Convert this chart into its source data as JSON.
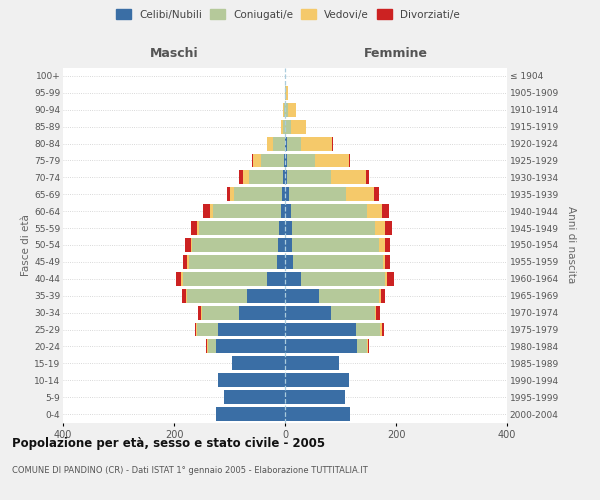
{
  "age_groups": [
    "0-4",
    "5-9",
    "10-14",
    "15-19",
    "20-24",
    "25-29",
    "30-34",
    "35-39",
    "40-44",
    "45-49",
    "50-54",
    "55-59",
    "60-64",
    "65-69",
    "70-74",
    "75-79",
    "80-84",
    "85-89",
    "90-94",
    "95-99",
    "100+"
  ],
  "birth_years": [
    "2000-2004",
    "1995-1999",
    "1990-1994",
    "1985-1989",
    "1980-1984",
    "1975-1979",
    "1970-1974",
    "1965-1969",
    "1960-1964",
    "1955-1959",
    "1950-1954",
    "1945-1949",
    "1940-1944",
    "1935-1939",
    "1930-1934",
    "1925-1929",
    "1920-1924",
    "1915-1919",
    "1910-1914",
    "1905-1909",
    "≤ 1904"
  ],
  "male": {
    "celibi": [
      125,
      110,
      120,
      95,
      125,
      120,
      82,
      68,
      32,
      15,
      12,
      10,
      8,
      5,
      3,
      2,
      0,
      0,
      0,
      0,
      0
    ],
    "coniugati": [
      0,
      0,
      0,
      0,
      14,
      38,
      68,
      108,
      152,
      158,
      155,
      145,
      122,
      87,
      62,
      42,
      22,
      4,
      2,
      0,
      0
    ],
    "vedovi": [
      0,
      0,
      0,
      0,
      2,
      2,
      2,
      2,
      3,
      3,
      3,
      3,
      5,
      8,
      10,
      14,
      10,
      4,
      2,
      0,
      0
    ],
    "divorziati": [
      0,
      0,
      0,
      0,
      2,
      2,
      5,
      8,
      10,
      8,
      10,
      11,
      12,
      5,
      8,
      2,
      0,
      0,
      0,
      0,
      0
    ]
  },
  "female": {
    "nubili": [
      118,
      108,
      115,
      98,
      130,
      128,
      82,
      62,
      28,
      14,
      12,
      12,
      10,
      8,
      4,
      4,
      4,
      0,
      0,
      0,
      0
    ],
    "coniugate": [
      0,
      0,
      0,
      0,
      18,
      44,
      80,
      108,
      152,
      162,
      158,
      150,
      137,
      102,
      78,
      50,
      25,
      10,
      5,
      2,
      0
    ],
    "vedove": [
      0,
      0,
      0,
      0,
      2,
      2,
      2,
      3,
      4,
      5,
      10,
      18,
      28,
      50,
      64,
      62,
      55,
      28,
      15,
      4,
      0
    ],
    "divorziate": [
      0,
      0,
      0,
      0,
      2,
      4,
      8,
      8,
      12,
      8,
      10,
      12,
      12,
      10,
      5,
      2,
      2,
      0,
      0,
      0,
      0
    ]
  },
  "colors": {
    "celibi_nubili": "#3a6ea5",
    "coniugati": "#b5c99a",
    "vedovi": "#f5c96a",
    "divorziati": "#cc2222"
  },
  "xlim": 400,
  "title": "Popolazione per età, sesso e stato civile - 2005",
  "subtitle": "COMUNE DI PANDINO (CR) - Dati ISTAT 1° gennaio 2005 - Elaborazione TUTTITALIA.IT",
  "ylabel_left": "Fasce di età",
  "ylabel_right": "Anni di nascita",
  "xlabel_maschi": "Maschi",
  "xlabel_femmine": "Femmine",
  "bg_color": "#f0f0f0",
  "plot_bg_color": "#ffffff"
}
